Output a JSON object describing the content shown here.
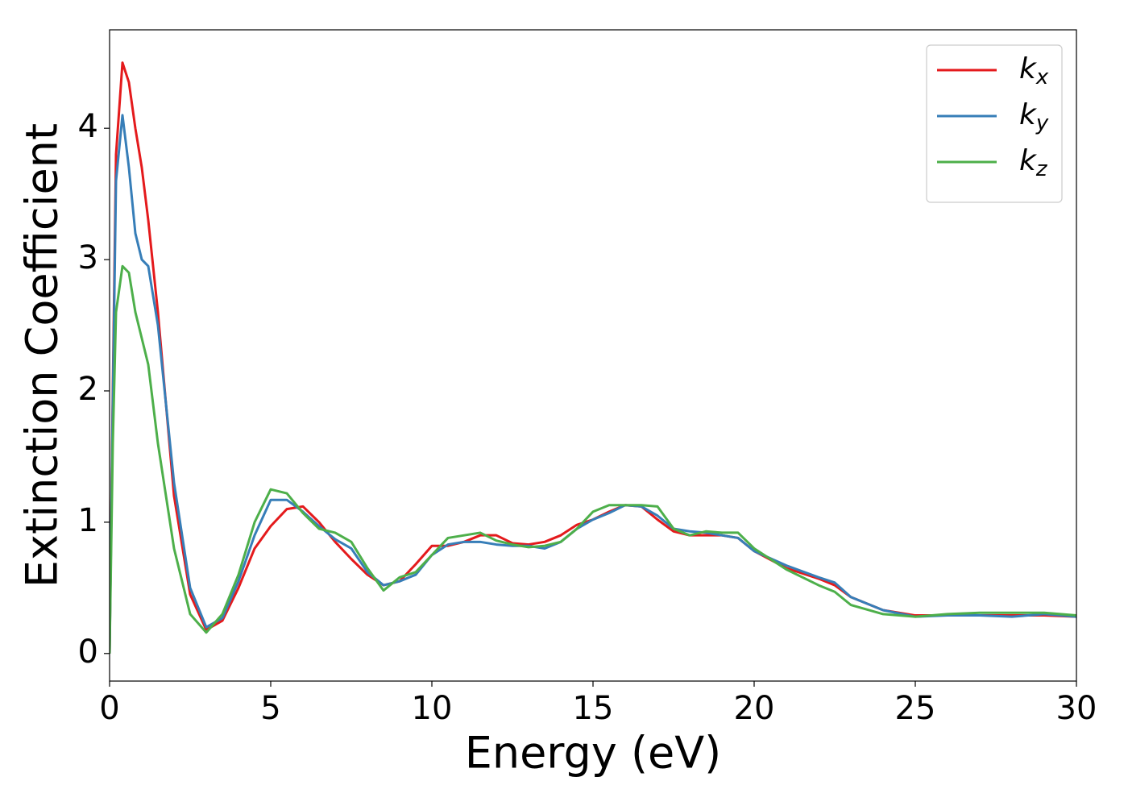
{
  "chart_data": {
    "type": "line",
    "xlabel": "Energy (eV)",
    "ylabel": "Extinction Coefficient",
    "x": [
      0,
      0.1,
      0.2,
      0.4,
      0.6,
      0.8,
      1.0,
      1.2,
      1.5,
      2.0,
      2.5,
      3,
      3.5,
      4,
      4.5,
      5,
      5.5,
      6,
      6.5,
      7,
      7.5,
      8,
      8.5,
      9,
      9.5,
      10,
      10.5,
      11,
      11.5,
      12,
      12.5,
      13,
      13.5,
      14,
      14.5,
      15,
      15.5,
      16,
      16.5,
      17,
      17.5,
      18,
      18.5,
      19,
      19.5,
      20,
      21,
      22,
      22.5,
      23,
      24,
      25,
      26,
      27,
      28,
      29,
      30
    ],
    "series": [
      {
        "name": "kx",
        "color": "#e41a1c",
        "values": [
          0,
          2.0,
          3.8,
          4.5,
          4.35,
          4.0,
          3.7,
          3.3,
          2.6,
          1.2,
          0.45,
          0.18,
          0.25,
          0.5,
          0.8,
          0.97,
          1.1,
          1.12,
          1.0,
          0.85,
          0.72,
          0.6,
          0.52,
          0.55,
          0.68,
          0.82,
          0.82,
          0.85,
          0.9,
          0.9,
          0.84,
          0.83,
          0.85,
          0.9,
          0.98,
          1.02,
          1.08,
          1.13,
          1.12,
          1.02,
          0.93,
          0.9,
          0.9,
          0.9,
          0.88,
          0.78,
          0.65,
          0.57,
          0.52,
          0.43,
          0.33,
          0.29,
          0.29,
          0.29,
          0.29,
          0.29,
          0.28
        ]
      },
      {
        "name": "ky",
        "color": "#377eb8",
        "values": [
          0,
          1.9,
          3.6,
          4.1,
          3.7,
          3.2,
          3.0,
          2.95,
          2.5,
          1.3,
          0.5,
          0.2,
          0.27,
          0.55,
          0.9,
          1.17,
          1.17,
          1.08,
          0.97,
          0.87,
          0.8,
          0.62,
          0.52,
          0.55,
          0.6,
          0.75,
          0.83,
          0.85,
          0.85,
          0.83,
          0.82,
          0.82,
          0.8,
          0.85,
          0.95,
          1.02,
          1.07,
          1.13,
          1.12,
          1.05,
          0.95,
          0.93,
          0.92,
          0.9,
          0.88,
          0.78,
          0.67,
          0.58,
          0.54,
          0.43,
          0.33,
          0.28,
          0.29,
          0.29,
          0.28,
          0.3,
          0.28
        ]
      },
      {
        "name": "kz",
        "color": "#4daf4a",
        "values": [
          0,
          1.6,
          2.6,
          2.95,
          2.9,
          2.6,
          2.4,
          2.2,
          1.6,
          0.8,
          0.3,
          0.16,
          0.3,
          0.6,
          1.0,
          1.25,
          1.22,
          1.07,
          0.95,
          0.92,
          0.85,
          0.65,
          0.48,
          0.58,
          0.62,
          0.75,
          0.88,
          0.9,
          0.92,
          0.86,
          0.83,
          0.81,
          0.82,
          0.85,
          0.95,
          1.08,
          1.13,
          1.13,
          1.13,
          1.12,
          0.95,
          0.9,
          0.93,
          0.92,
          0.92,
          0.8,
          0.64,
          0.52,
          0.47,
          0.37,
          0.3,
          0.28,
          0.3,
          0.31,
          0.31,
          0.31,
          0.29
        ]
      }
    ],
    "xlim": [
      0,
      30
    ],
    "xticks": [
      0,
      5,
      10,
      15,
      20,
      25,
      30
    ],
    "ylim": [
      -0.21,
      4.75
    ],
    "yticks": [
      0,
      1,
      2,
      3,
      4
    ],
    "grid": false,
    "legend": "upper right"
  }
}
